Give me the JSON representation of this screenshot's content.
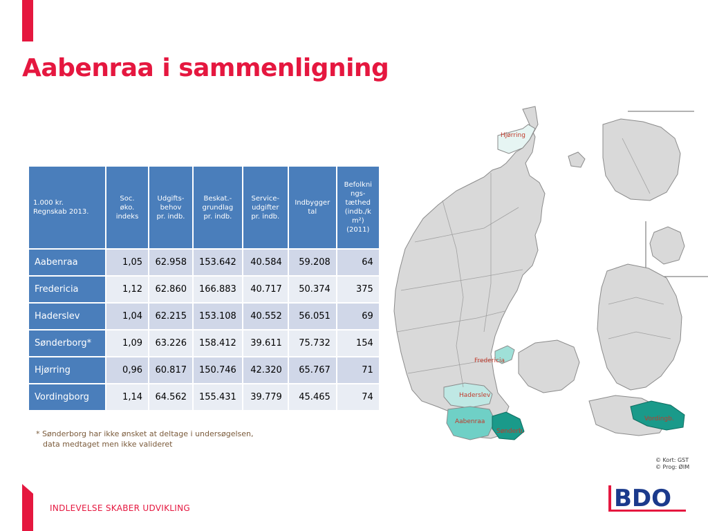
{
  "title": "Aabenraa i sammenligning",
  "table": {
    "headers": [
      "1.000 kr.\nRegnskab 2013.",
      "Soc.\nøko.\nindeks",
      "Udgifts-\nbehov\npr. indb.",
      "Beskat.-\ngrundlag\npr. indb.",
      "Service-\nudgifter\npr. indb.",
      "Indbygger\ntal",
      "Befolkni\nngs-\ntæthed\n(indb./k\nm²)\n(2011)"
    ],
    "rows": [
      {
        "name": "Aabenraa",
        "cells": [
          "1,05",
          "62.958",
          "153.642",
          "40.584",
          "59.208",
          "64"
        ]
      },
      {
        "name": "Fredericia",
        "cells": [
          "1,12",
          "62.860",
          "166.883",
          "40.717",
          "50.374",
          "375"
        ]
      },
      {
        "name": "Haderslev",
        "cells": [
          "1,04",
          "62.215",
          "153.108",
          "40.552",
          "56.051",
          "69"
        ]
      },
      {
        "name": "Sønderborg*",
        "cells": [
          "1,09",
          "63.226",
          "158.412",
          "39.611",
          "75.732",
          "154"
        ]
      },
      {
        "name": "Hjørring",
        "cells": [
          "0,96",
          "60.817",
          "150.746",
          "42.320",
          "65.767",
          "71"
        ]
      },
      {
        "name": "Vordingborg",
        "cells": [
          "1,14",
          "64.562",
          "155.431",
          "39.779",
          "45.465",
          "74"
        ]
      }
    ]
  },
  "footnote": {
    "line1": "* Sønderborg har ikke ønsket at deltage i undersøgelsen,",
    "line2": "data medtaget men ikke valideret"
  },
  "map": {
    "labels": {
      "hjorring": "Hjørring",
      "fredericia": "Fredericia",
      "haderslev": "Haderslev",
      "aabenraa": "Aabenraa",
      "sonderborg": "Sønderb.",
      "vordingborg": "Vordingb."
    },
    "copyright1": "© Kort: GST",
    "copyright2": "© Prog: ØIM",
    "colors": {
      "land": "#d9d9d9",
      "border": "#8a8a8a",
      "light_teal": "#bfe8e4",
      "mid_teal": "#6fd0c6",
      "dark_teal": "#1a9a8a",
      "label": "#c0392b"
    }
  },
  "tagline": "INDLEVELSE SKABER UDVIKLING",
  "logo": {
    "text": "BDO",
    "color": "#1b3a8c",
    "accent": "#e5173f"
  }
}
